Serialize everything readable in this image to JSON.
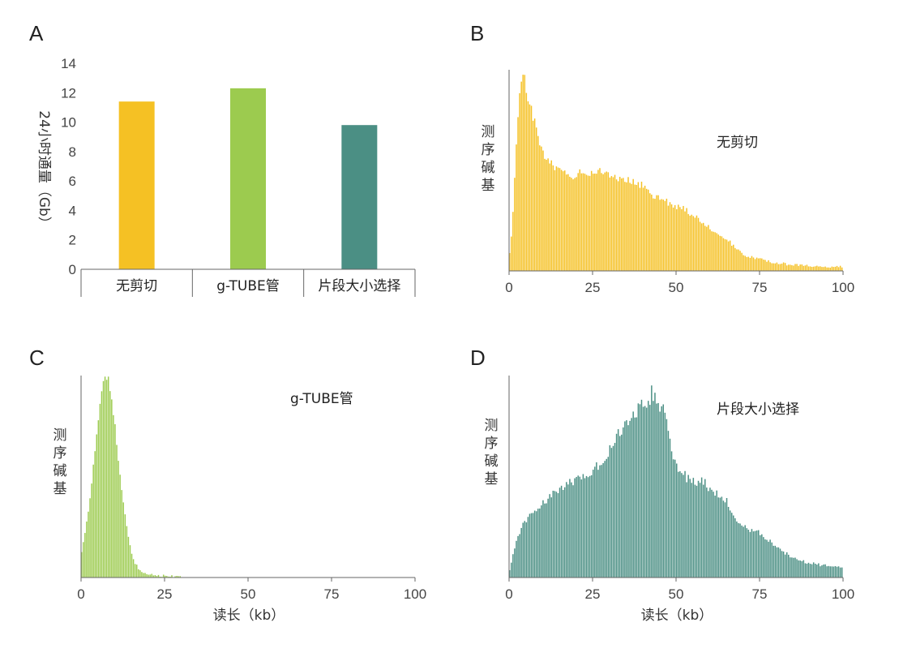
{
  "chart_data": [
    {
      "panel": "A",
      "type": "bar",
      "ylabel": "24小时通量（Gb）",
      "ylim": [
        0,
        14
      ],
      "yticks": [
        "0",
        "2",
        "4",
        "6",
        "8",
        "10",
        "12",
        "14"
      ],
      "categories": [
        "无剪切",
        "g-TUBE管",
        "片段大小选择"
      ],
      "values": [
        11.4,
        12.3,
        9.8
      ],
      "colors": [
        "#f5c124",
        "#9ccb4f",
        "#4b8f84"
      ]
    },
    {
      "panel": "B",
      "type": "bar",
      "annotation": "无剪切",
      "ylabel": "测序碱基",
      "xticks": [
        "0",
        "25",
        "50",
        "75",
        "100"
      ],
      "xlim": [
        0,
        100
      ],
      "color": "#f5c124",
      "keypoints": [
        [
          0,
          0.05
        ],
        [
          1,
          0.2
        ],
        [
          2,
          0.55
        ],
        [
          3,
          0.85
        ],
        [
          4,
          1.0
        ],
        [
          5,
          0.92
        ],
        [
          6,
          0.85
        ],
        [
          7,
          0.78
        ],
        [
          8,
          0.72
        ],
        [
          9,
          0.66
        ],
        [
          10,
          0.6
        ],
        [
          12,
          0.54
        ],
        [
          15,
          0.5
        ],
        [
          18,
          0.49
        ],
        [
          20,
          0.46
        ],
        [
          22,
          0.5
        ],
        [
          25,
          0.49
        ],
        [
          28,
          0.5
        ],
        [
          30,
          0.48
        ],
        [
          33,
          0.46
        ],
        [
          36,
          0.45
        ],
        [
          40,
          0.42
        ],
        [
          43,
          0.38
        ],
        [
          46,
          0.36
        ],
        [
          49,
          0.33
        ],
        [
          52,
          0.31
        ],
        [
          55,
          0.28
        ],
        [
          58,
          0.24
        ],
        [
          61,
          0.2
        ],
        [
          64,
          0.17
        ],
        [
          67,
          0.13
        ],
        [
          70,
          0.08
        ],
        [
          75,
          0.06
        ],
        [
          80,
          0.04
        ],
        [
          85,
          0.03
        ],
        [
          90,
          0.025
        ],
        [
          95,
          0.02
        ],
        [
          100,
          0.02
        ]
      ],
      "noise": 0.04
    },
    {
      "panel": "C",
      "type": "bar",
      "annotation": "g-TUBE管",
      "ylabel": "测序碱基",
      "xlabel": "读长（kb）",
      "xticks": [
        "0",
        "25",
        "50",
        "75",
        "100"
      ],
      "xlim": [
        0,
        100
      ],
      "color": "#9ccb4f",
      "keypoints": [
        [
          0,
          0.1
        ],
        [
          1,
          0.2
        ],
        [
          2,
          0.3
        ],
        [
          3,
          0.42
        ],
        [
          4,
          0.6
        ],
        [
          5,
          0.75
        ],
        [
          6,
          0.9
        ],
        [
          7,
          0.98
        ],
        [
          8,
          1.0
        ],
        [
          9,
          0.9
        ],
        [
          10,
          0.8
        ],
        [
          11,
          0.62
        ],
        [
          12,
          0.48
        ],
        [
          13,
          0.34
        ],
        [
          14,
          0.22
        ],
        [
          15,
          0.13
        ],
        [
          16,
          0.08
        ],
        [
          17,
          0.05
        ],
        [
          18,
          0.03
        ],
        [
          20,
          0.018
        ],
        [
          23,
          0.01
        ],
        [
          27,
          0.006
        ],
        [
          32,
          0.003
        ],
        [
          36,
          0.0
        ],
        [
          100,
          0.0
        ]
      ],
      "noise": 0.02
    },
    {
      "panel": "D",
      "type": "bar",
      "annotation": "片段大小选择",
      "ylabel": "测序碱基",
      "xlabel": "读长（kb）",
      "xticks": [
        "0",
        "25",
        "50",
        "75",
        "100"
      ],
      "xlim": [
        0,
        100
      ],
      "color": "#4b8f84",
      "keypoints": [
        [
          0,
          0.02
        ],
        [
          1,
          0.1
        ],
        [
          2,
          0.17
        ],
        [
          3,
          0.22
        ],
        [
          5,
          0.28
        ],
        [
          8,
          0.33
        ],
        [
          10,
          0.36
        ],
        [
          13,
          0.41
        ],
        [
          16,
          0.45
        ],
        [
          19,
          0.47
        ],
        [
          22,
          0.5
        ],
        [
          25,
          0.53
        ],
        [
          28,
          0.58
        ],
        [
          31,
          0.66
        ],
        [
          34,
          0.74
        ],
        [
          37,
          0.8
        ],
        [
          40,
          0.86
        ],
        [
          42,
          0.9
        ],
        [
          44,
          0.92
        ],
        [
          46,
          0.84
        ],
        [
          48,
          0.72
        ],
        [
          50,
          0.55
        ],
        [
          53,
          0.5
        ],
        [
          56,
          0.48
        ],
        [
          59,
          0.46
        ],
        [
          62,
          0.42
        ],
        [
          65,
          0.38
        ],
        [
          68,
          0.28
        ],
        [
          72,
          0.24
        ],
        [
          75,
          0.22
        ],
        [
          78,
          0.18
        ],
        [
          81,
          0.14
        ],
        [
          85,
          0.1
        ],
        [
          90,
          0.07
        ],
        [
          95,
          0.06
        ],
        [
          100,
          0.05
        ]
      ],
      "noise": 0.05
    }
  ]
}
